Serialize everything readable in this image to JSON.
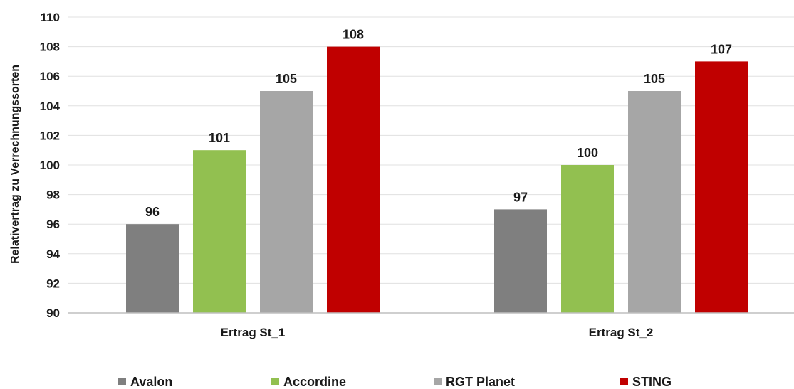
{
  "chart_data": {
    "type": "bar",
    "title": "",
    "xlabel": "",
    "ylabel": "Relativertrag zu Verrechnungssorten",
    "ylim": [
      90,
      110
    ],
    "yticks": [
      90,
      92,
      94,
      96,
      98,
      100,
      102,
      104,
      106,
      108,
      110
    ],
    "categories": [
      "Ertrag St_1",
      "Ertrag St_2"
    ],
    "series": [
      {
        "name": "Avalon",
        "color": "#7f7f7f",
        "values": [
          96,
          97
        ]
      },
      {
        "name": "Accordine",
        "color": "#92c050",
        "values": [
          101,
          100
        ]
      },
      {
        "name": "RGT Planet",
        "color": "#a6a6a6",
        "values": [
          105,
          105
        ]
      },
      {
        "name": "STING",
        "color": "#c00000",
        "values": [
          108,
          107
        ]
      }
    ],
    "grid": true,
    "legend": "bottom"
  }
}
